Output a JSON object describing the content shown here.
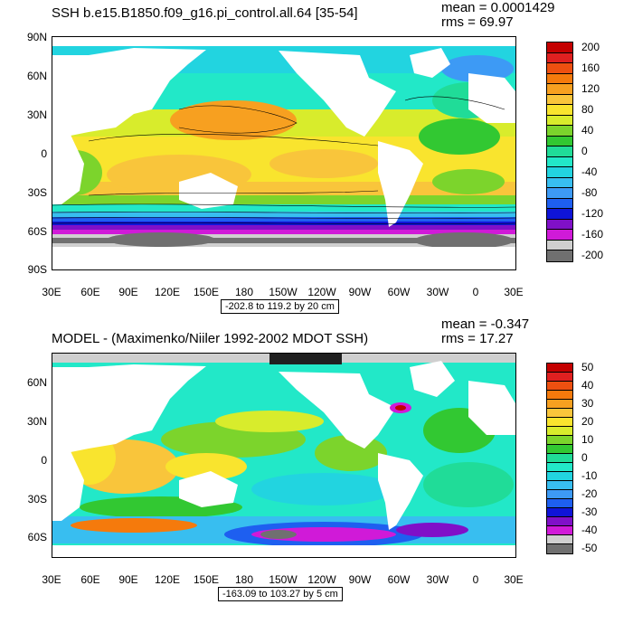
{
  "panels": [
    {
      "title": "SSH b.e15.B1850.f09_g16.pi_control.all.64 [35-54]",
      "mean_label": "mean = 0.0001429",
      "rms_label": "rms = 69.97",
      "lat_labels": [
        "90N",
        "60N",
        "30N",
        "0",
        "30S",
        "60S",
        "90S"
      ],
      "lon_labels": [
        "30E",
        "60E",
        "90E",
        "120E",
        "150E",
        "180",
        "150W",
        "120W",
        "90W",
        "60W",
        "30W",
        "0",
        "30E"
      ],
      "range_label": "-202.8 to 119.2 by 20 cm",
      "colorbar_labels": [
        "200",
        "160",
        "120",
        "80",
        "40",
        "0",
        "-40",
        "-80",
        "-120",
        "-160",
        "-200"
      ],
      "colorbar_colors": [
        "#c40000",
        "#e02020",
        "#ee5010",
        "#f57a0c",
        "#f7a020",
        "#f9c53b",
        "#f9e42e",
        "#d8ec2c",
        "#7cd42c",
        "#32c832",
        "#20dc98",
        "#22e8c8",
        "#22d4e0",
        "#38bef0",
        "#3d9af5",
        "#1e5ff0",
        "#0f14d8",
        "#8010c8",
        "#d01ad8",
        "#cfcfcf",
        "#707070"
      ]
    },
    {
      "title": "MODEL - (Maximenko/Niiler 1992-2002 MDOT SSH)",
      "mean_label": "mean = -0.347",
      "rms_label": "rms = 17.27",
      "lat_labels": [
        "60N",
        "30N",
        "0",
        "30S",
        "60S"
      ],
      "lon_labels": [
        "30E",
        "60E",
        "90E",
        "120E",
        "150E",
        "180",
        "150W",
        "120W",
        "90W",
        "60W",
        "30W",
        "0",
        "30E"
      ],
      "range_label": "-163.09 to 103.27 by 5 cm",
      "colorbar_labels": [
        "50",
        "40",
        "30",
        "20",
        "10",
        "0",
        "-10",
        "-20",
        "-30",
        "-40",
        "-50"
      ],
      "colorbar_colors": [
        "#c40000",
        "#e02020",
        "#ee5010",
        "#f57a0c",
        "#f7a020",
        "#f9c53b",
        "#f9e42e",
        "#d8ec2c",
        "#7cd42c",
        "#32c832",
        "#20dc98",
        "#22e8c8",
        "#22d4e0",
        "#38bef0",
        "#3d9af5",
        "#1e5ff0",
        "#0f14d8",
        "#8010c8",
        "#d01ad8",
        "#cfcfcf",
        "#707070"
      ]
    }
  ]
}
